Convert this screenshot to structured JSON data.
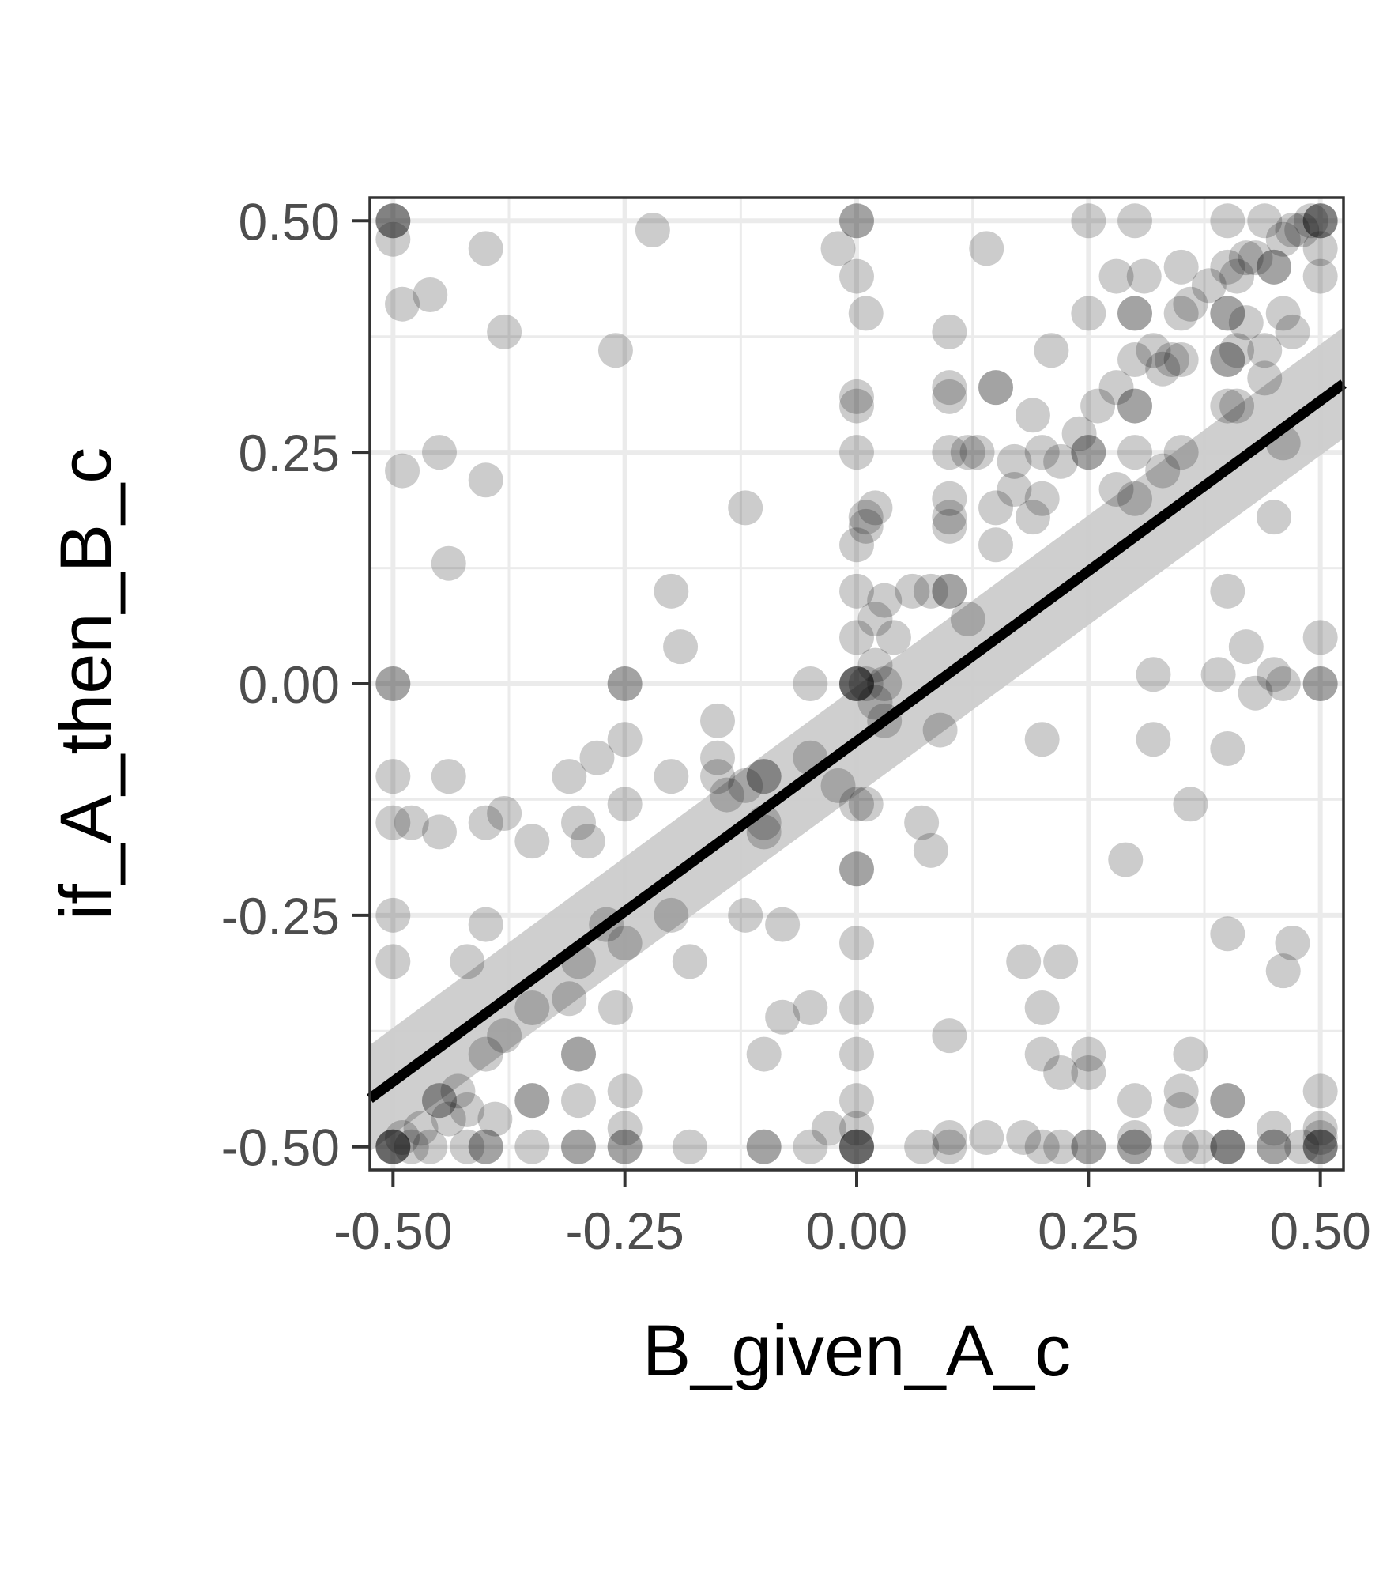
{
  "chart_data": {
    "type": "scatter",
    "title": "",
    "xlabel": "B_given_A_c",
    "ylabel": "if_A_then_B_c",
    "xlim": [
      -0.525,
      0.525
    ],
    "ylim": [
      -0.525,
      0.525
    ],
    "x_ticks": [
      -0.5,
      -0.25,
      0,
      0.25,
      0.5
    ],
    "y_ticks": [
      -0.5,
      -0.25,
      0,
      0.25,
      0.5
    ],
    "x_tick_labels": [
      "-0.50",
      "-0.25",
      "0.00",
      "0.25",
      "0.50"
    ],
    "y_tick_labels": [
      "-0.50",
      "-0.25",
      "0.00",
      "0.25",
      "0.50"
    ],
    "grid": true,
    "point_color": "#000000",
    "point_alpha": 0.2,
    "regression_line": {
      "x": [
        -0.525,
        0.525
      ],
      "y": [
        -0.448,
        0.324
      ],
      "color": "#000000",
      "ci_band": {
        "lower": [
          -0.505,
          0.265
        ],
        "upper": [
          -0.39,
          0.385
        ],
        "color": "#cccccc"
      }
    },
    "points": [
      [
        -0.5,
        0.5
      ],
      [
        -0.5,
        0.5
      ],
      [
        -0.5,
        0.5
      ],
      [
        -0.5,
        0.48
      ],
      [
        -0.49,
        0.41
      ],
      [
        -0.46,
        0.42
      ],
      [
        -0.4,
        0.47
      ],
      [
        -0.38,
        0.38
      ],
      [
        -0.22,
        0.49
      ],
      [
        -0.26,
        0.36
      ],
      [
        -0.49,
        0.23
      ],
      [
        -0.45,
        0.25
      ],
      [
        -0.44,
        0.13
      ],
      [
        -0.4,
        0.22
      ],
      [
        -0.2,
        0.1
      ],
      [
        -0.19,
        0.04
      ],
      [
        -0.12,
        0.19
      ],
      [
        -0.5,
        0
      ],
      [
        -0.5,
        0
      ],
      [
        -0.5,
        -0.1
      ],
      [
        -0.5,
        -0.15
      ],
      [
        -0.48,
        -0.15
      ],
      [
        -0.44,
        -0.1
      ],
      [
        -0.45,
        -0.16
      ],
      [
        -0.4,
        -0.15
      ],
      [
        -0.38,
        -0.14
      ],
      [
        -0.35,
        -0.17
      ],
      [
        -0.31,
        -0.1
      ],
      [
        -0.28,
        -0.08
      ],
      [
        -0.25,
        -0.06
      ],
      [
        -0.3,
        -0.15
      ],
      [
        -0.29,
        -0.17
      ],
      [
        -0.25,
        -0.13
      ],
      [
        -0.25,
        0
      ],
      [
        -0.25,
        0
      ],
      [
        -0.2,
        -0.1
      ],
      [
        -0.15,
        -0.08
      ],
      [
        -0.15,
        -0.1
      ],
      [
        -0.14,
        -0.12
      ],
      [
        -0.12,
        -0.11
      ],
      [
        -0.1,
        -0.1
      ],
      [
        -0.1,
        -0.1
      ],
      [
        -0.1,
        -0.15
      ],
      [
        -0.1,
        -0.16
      ],
      [
        -0.15,
        -0.04
      ],
      [
        -0.05,
        -0.08
      ],
      [
        -0.05,
        0
      ],
      [
        -0.02,
        -0.11
      ],
      [
        -0.5,
        -0.25
      ],
      [
        -0.5,
        -0.3
      ],
      [
        -0.4,
        -0.26
      ],
      [
        -0.42,
        -0.3
      ],
      [
        -0.4,
        -0.4
      ],
      [
        -0.38,
        -0.38
      ],
      [
        -0.35,
        -0.35
      ],
      [
        -0.3,
        -0.3
      ],
      [
        -0.31,
        -0.34
      ],
      [
        -0.3,
        -0.4
      ],
      [
        -0.3,
        -0.4
      ],
      [
        -0.27,
        -0.26
      ],
      [
        -0.25,
        -0.28
      ],
      [
        -0.26,
        -0.35
      ],
      [
        -0.2,
        -0.25
      ],
      [
        -0.18,
        -0.3
      ],
      [
        -0.12,
        -0.25
      ],
      [
        -0.08,
        -0.26
      ],
      [
        -0.1,
        -0.4
      ],
      [
        -0.08,
        -0.36
      ],
      [
        -0.05,
        -0.35
      ],
      [
        -0.35,
        -0.45
      ],
      [
        -0.35,
        -0.45
      ],
      [
        -0.3,
        -0.45
      ],
      [
        -0.25,
        -0.44
      ],
      [
        -0.25,
        -0.48
      ],
      [
        -0.5,
        -0.5
      ],
      [
        -0.5,
        -0.5
      ],
      [
        -0.5,
        -0.5
      ],
      [
        -0.5,
        -0.5
      ],
      [
        -0.49,
        -0.49
      ],
      [
        -0.48,
        -0.5
      ],
      [
        -0.47,
        -0.48
      ],
      [
        -0.46,
        -0.5
      ],
      [
        -0.45,
        -0.45
      ],
      [
        -0.45,
        -0.45
      ],
      [
        -0.44,
        -0.47
      ],
      [
        -0.43,
        -0.44
      ],
      [
        -0.42,
        -0.46
      ],
      [
        -0.42,
        -0.5
      ],
      [
        -0.4,
        -0.5
      ],
      [
        -0.4,
        -0.5
      ],
      [
        -0.39,
        -0.47
      ],
      [
        -0.35,
        -0.5
      ],
      [
        -0.3,
        -0.5
      ],
      [
        -0.3,
        -0.5
      ],
      [
        -0.25,
        -0.5
      ],
      [
        -0.25,
        -0.5
      ],
      [
        -0.18,
        -0.5
      ],
      [
        -0.1,
        -0.5
      ],
      [
        -0.1,
        -0.5
      ],
      [
        -0.05,
        -0.5
      ],
      [
        -0.03,
        -0.48
      ],
      [
        0,
        0.5
      ],
      [
        0,
        0.5
      ],
      [
        0,
        0.44
      ],
      [
        -0.02,
        0.47
      ],
      [
        0.01,
        0.4
      ],
      [
        0,
        0.31
      ],
      [
        0,
        0.3
      ],
      [
        0,
        0.25
      ],
      [
        0.01,
        0.17
      ],
      [
        0.01,
        0.18
      ],
      [
        0,
        0.15
      ],
      [
        0.02,
        0.19
      ],
      [
        0,
        0.1
      ],
      [
        0,
        0.05
      ],
      [
        0.02,
        0.07
      ],
      [
        0.03,
        0.09
      ],
      [
        0.04,
        0.05
      ],
      [
        0,
        0
      ],
      [
        0,
        0
      ],
      [
        0,
        0
      ],
      [
        0,
        0
      ],
      [
        0.01,
        0
      ],
      [
        0.02,
        0.02
      ],
      [
        0.03,
        0
      ],
      [
        0.03,
        -0.04
      ],
      [
        0.02,
        -0.02
      ],
      [
        0,
        -0.13
      ],
      [
        0.01,
        -0.13
      ],
      [
        0,
        -0.2
      ],
      [
        0,
        -0.2
      ],
      [
        0,
        -0.28
      ],
      [
        0,
        -0.35
      ],
      [
        0,
        -0.4
      ],
      [
        0,
        -0.45
      ],
      [
        0,
        -0.5
      ],
      [
        0,
        -0.5
      ],
      [
        0,
        -0.5
      ],
      [
        0,
        -0.5
      ],
      [
        0,
        -0.48
      ],
      [
        0.07,
        -0.5
      ],
      [
        0.1,
        -0.49
      ],
      [
        0.1,
        -0.5
      ],
      [
        0.1,
        -0.38
      ],
      [
        0.07,
        -0.15
      ],
      [
        0.08,
        -0.18
      ],
      [
        0.09,
        -0.05
      ],
      [
        0.1,
        0.1
      ],
      [
        0.1,
        0.1
      ],
      [
        0.08,
        0.1
      ],
      [
        0.06,
        0.1
      ],
      [
        0.12,
        0.07
      ],
      [
        0.1,
        0.2
      ],
      [
        0.1,
        0.18
      ],
      [
        0.1,
        0.17
      ],
      [
        0.12,
        0.25
      ],
      [
        0.13,
        0.25
      ],
      [
        0.1,
        0.25
      ],
      [
        0.1,
        0.31
      ],
      [
        0.1,
        0.32
      ],
      [
        0.1,
        0.38
      ],
      [
        0.15,
        0.32
      ],
      [
        0.15,
        0.32
      ],
      [
        0.14,
        0.47
      ],
      [
        0.15,
        0.15
      ],
      [
        0.15,
        0.19
      ],
      [
        0.17,
        0.21
      ],
      [
        0.17,
        0.24
      ],
      [
        0.19,
        0.18
      ],
      [
        0.19,
        0.29
      ],
      [
        0.2,
        0.25
      ],
      [
        0.2,
        0.2
      ],
      [
        0.21,
        0.36
      ],
      [
        0.22,
        0.24
      ],
      [
        0.25,
        0.25
      ],
      [
        0.25,
        0.25
      ],
      [
        0.24,
        0.27
      ],
      [
        0.26,
        0.3
      ],
      [
        0.28,
        0.32
      ],
      [
        0.25,
        0.4
      ],
      [
        0.25,
        0.5
      ],
      [
        0.3,
        0.5
      ],
      [
        0.28,
        0.44
      ],
      [
        0.3,
        0.4
      ],
      [
        0.3,
        0.4
      ],
      [
        0.3,
        0.3
      ],
      [
        0.3,
        0.3
      ],
      [
        0.3,
        0.35
      ],
      [
        0.31,
        0.44
      ],
      [
        0.32,
        0.36
      ],
      [
        0.33,
        0.34
      ],
      [
        0.34,
        0.35
      ],
      [
        0.35,
        0.35
      ],
      [
        0.35,
        0.4
      ],
      [
        0.35,
        0.45
      ],
      [
        0.36,
        0.41
      ],
      [
        0.3,
        0.2
      ],
      [
        0.3,
        0.25
      ],
      [
        0.33,
        0.23
      ],
      [
        0.35,
        0.25
      ],
      [
        0.28,
        0.21
      ],
      [
        0.38,
        0.43
      ],
      [
        0.4,
        0.4
      ],
      [
        0.4,
        0.4
      ],
      [
        0.4,
        0.45
      ],
      [
        0.4,
        0.5
      ],
      [
        0.42,
        0.46
      ],
      [
        0.41,
        0.44
      ],
      [
        0.43,
        0.46
      ],
      [
        0.45,
        0.45
      ],
      [
        0.45,
        0.45
      ],
      [
        0.46,
        0.48
      ],
      [
        0.47,
        0.49
      ],
      [
        0.48,
        0.49
      ],
      [
        0.49,
        0.5
      ],
      [
        0.5,
        0.5
      ],
      [
        0.5,
        0.5
      ],
      [
        0.5,
        0.5
      ],
      [
        0.44,
        0.5
      ],
      [
        0.41,
        0.36
      ],
      [
        0.4,
        0.35
      ],
      [
        0.4,
        0.35
      ],
      [
        0.44,
        0.36
      ],
      [
        0.42,
        0.39
      ],
      [
        0.46,
        0.4
      ],
      [
        0.47,
        0.38
      ],
      [
        0.44,
        0.33
      ],
      [
        0.4,
        0.3
      ],
      [
        0.41,
        0.3
      ],
      [
        0.45,
        0.18
      ],
      [
        0.5,
        0.47
      ],
      [
        0.5,
        0.44
      ],
      [
        0.46,
        0.26
      ],
      [
        0.4,
        0.1
      ],
      [
        0.42,
        0.04
      ],
      [
        0.43,
        -0.01
      ],
      [
        0.45,
        0.01
      ],
      [
        0.46,
        0
      ],
      [
        0.5,
        0.05
      ],
      [
        0.5,
        0
      ],
      [
        0.5,
        0
      ],
      [
        0.39,
        0.01
      ],
      [
        0.4,
        -0.07
      ],
      [
        0.32,
        0.01
      ],
      [
        0.32,
        -0.06
      ],
      [
        0.2,
        -0.06
      ],
      [
        0.36,
        -0.13
      ],
      [
        0.29,
        -0.19
      ],
      [
        0.4,
        -0.27
      ],
      [
        0.47,
        -0.28
      ],
      [
        0.46,
        -0.31
      ],
      [
        0.18,
        -0.3
      ],
      [
        0.22,
        -0.3
      ],
      [
        0.2,
        -0.35
      ],
      [
        0.2,
        -0.4
      ],
      [
        0.22,
        -0.42
      ],
      [
        0.25,
        -0.4
      ],
      [
        0.25,
        -0.42
      ],
      [
        0.36,
        -0.4
      ],
      [
        0.35,
        -0.44
      ],
      [
        0.35,
        -0.46
      ],
      [
        0.3,
        -0.45
      ],
      [
        0.4,
        -0.45
      ],
      [
        0.4,
        -0.45
      ],
      [
        0.5,
        -0.44
      ],
      [
        0.45,
        -0.48
      ],
      [
        0.5,
        -0.48
      ],
      [
        0.18,
        -0.49
      ],
      [
        0.2,
        -0.5
      ],
      [
        0.22,
        -0.5
      ],
      [
        0.25,
        -0.5
      ],
      [
        0.25,
        -0.5
      ],
      [
        0.3,
        -0.49
      ],
      [
        0.3,
        -0.5
      ],
      [
        0.3,
        -0.5
      ],
      [
        0.35,
        -0.5
      ],
      [
        0.37,
        -0.5
      ],
      [
        0.4,
        -0.5
      ],
      [
        0.4,
        -0.5
      ],
      [
        0.4,
        -0.5
      ],
      [
        0.45,
        -0.5
      ],
      [
        0.45,
        -0.5
      ],
      [
        0.48,
        -0.5
      ],
      [
        0.5,
        -0.5
      ],
      [
        0.5,
        -0.5
      ],
      [
        0.5,
        -0.5
      ],
      [
        0.5,
        -0.49
      ],
      [
        0.14,
        -0.49
      ]
    ]
  }
}
